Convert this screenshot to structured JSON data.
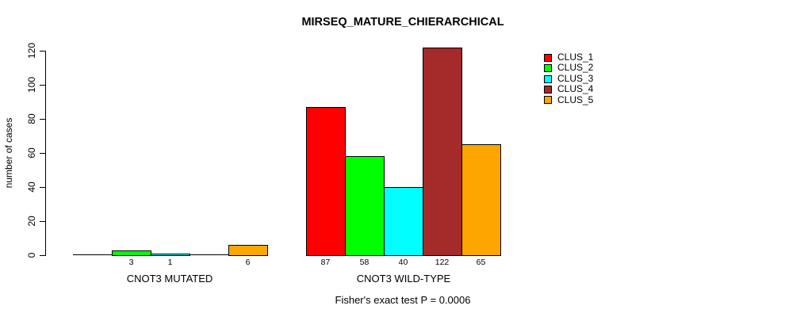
{
  "chart_data": {
    "type": "bar",
    "title": "MIRSEQ_MATURE_CHIERARCHICAL",
    "xlabel": "",
    "ylabel": "number of cases",
    "ylim": [
      0,
      120
    ],
    "yticks": [
      0,
      20,
      40,
      60,
      80,
      100,
      120
    ],
    "grid": false,
    "legend_position": "top-right",
    "annotation": "Fisher's exact test P = 0.0006",
    "series": [
      {
        "name": "CLUS_1",
        "color": "#FF0000"
      },
      {
        "name": "CLUS_2",
        "color": "#00FF00"
      },
      {
        "name": "CLUS_3",
        "color": "#00FFFF"
      },
      {
        "name": "CLUS_4",
        "color": "#A52A2A"
      },
      {
        "name": "CLUS_5",
        "color": "#FFA500"
      }
    ],
    "groups": [
      {
        "label": "CNOT3 MUTATED",
        "values": [
          0,
          3,
          1,
          0,
          6
        ]
      },
      {
        "label": "CNOT3 WILD-TYPE",
        "values": [
          87,
          58,
          40,
          122,
          65
        ]
      }
    ],
    "bar_label_rule": "value shown under each nonzero bar"
  }
}
